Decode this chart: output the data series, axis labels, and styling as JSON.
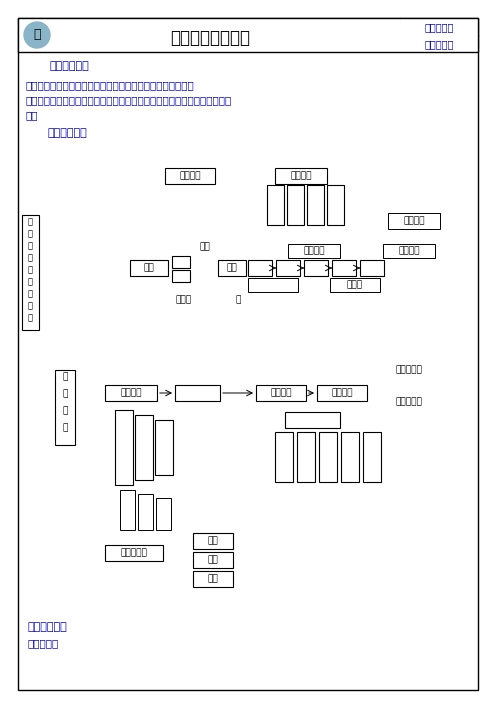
{
  "title": "细胞工程专题复习",
  "top_right_line1": "策略与反思",
  "top_right_line2": "纠错与归纳",
  "section1_label": "【重点难点】",
  "section1_text1": "重点：体内受精和早期胚胎发育；体外受精和早期胚胎培养。",
  "section1_text2a": "难点：胚胎工程的应用及前景（胚胎移植的基本程序；胚胎分割；胚胎干细",
  "section1_text2b": "胞）",
  "section2_label": "【自主学习】",
  "section3_label": "【专题检测】",
  "section3_sub": "一、选择题",
  "bg_color": "#ffffff",
  "border_color": "#000000",
  "title_color": "#000000",
  "label_color": "#0000bb",
  "text_color": "#0000bb",
  "gray_color": "#888888"
}
